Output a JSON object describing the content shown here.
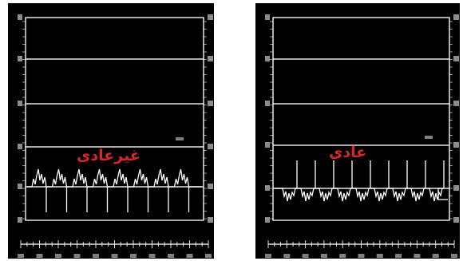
{
  "panels": {
    "left": {
      "label": "غیرعادی"
    },
    "right": {
      "label": "عادی"
    }
  },
  "colors": {
    "background": "#000000",
    "trace": "#ffffff",
    "label": "#d8262b"
  }
}
